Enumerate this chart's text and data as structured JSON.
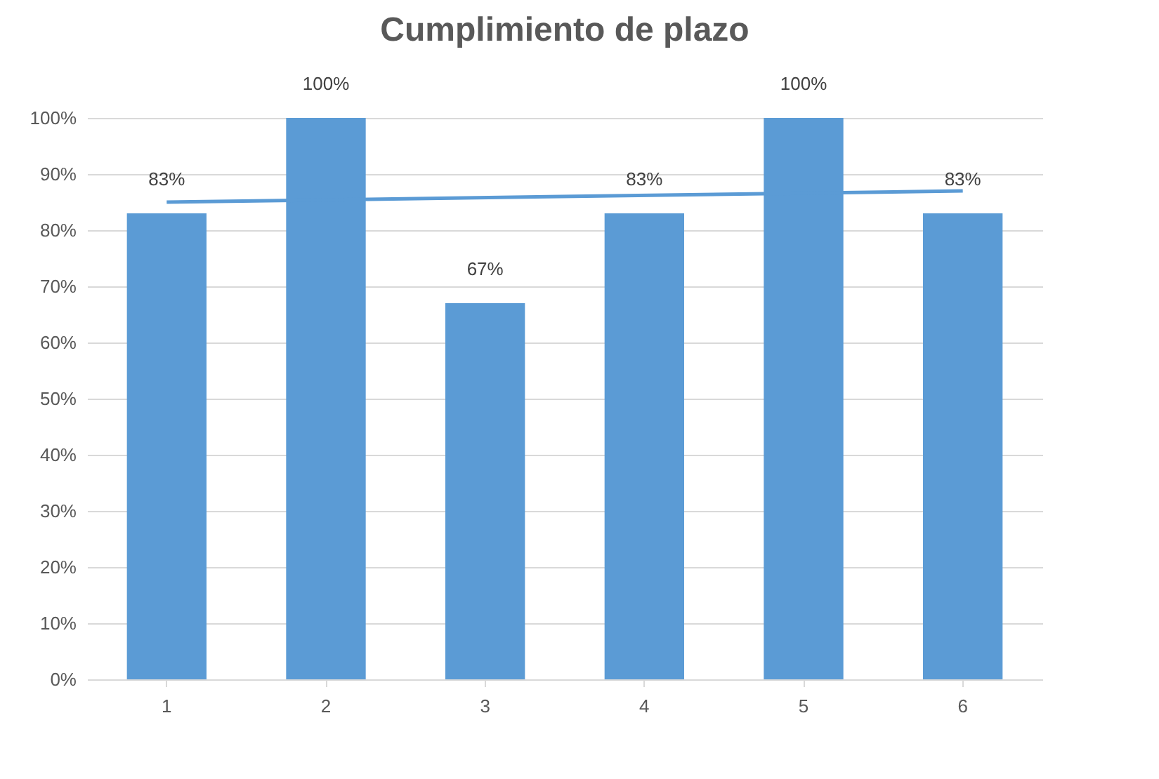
{
  "chart_data": {
    "type": "bar",
    "title": "Cumplimiento de plazo",
    "categories": [
      "1",
      "2",
      "3",
      "4",
      "5",
      "6"
    ],
    "series": [
      {
        "color": "#5b9bd5",
        "values": [
          83,
          100,
          67,
          83,
          100,
          83
        ],
        "value_labels": [
          "83%",
          "100%",
          "67%",
          "83%",
          "100%",
          "83%"
        ]
      },
      {
        "type": "line",
        "color": "#5b9bd5",
        "x": [
          "1",
          "6"
        ],
        "values": [
          85,
          87
        ]
      }
    ],
    "ylim": [
      0,
      100
    ],
    "yticks": [
      {
        "value": 0,
        "label": "0%"
      },
      {
        "value": 10,
        "label": "10%"
      },
      {
        "value": 20,
        "label": "20%"
      },
      {
        "value": 30,
        "label": "30%"
      },
      {
        "value": 40,
        "label": "40%"
      },
      {
        "value": 50,
        "label": "50%"
      },
      {
        "value": 60,
        "label": "60%"
      },
      {
        "value": 70,
        "label": "70%"
      },
      {
        "value": 80,
        "label": "80%"
      },
      {
        "value": 90,
        "label": "90%"
      },
      {
        "value": 100,
        "label": "100%"
      }
    ],
    "grid": "y",
    "marker": "none",
    "line_style": "solid"
  }
}
